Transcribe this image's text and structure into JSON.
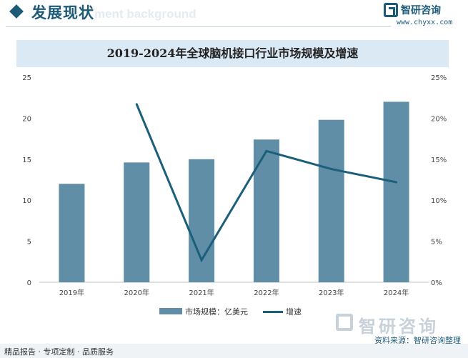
{
  "header": {
    "title": "发展现状",
    "watermark": "ment background"
  },
  "brand": {
    "name": "智研咨询",
    "url": "www.chyxx.com"
  },
  "chart_data": {
    "type": "bar",
    "title": "2019-2024年全球脑机接口行业市场规模及增速",
    "categories": [
      "2019年",
      "2020年",
      "2021年",
      "2022年",
      "2023年",
      "2024年"
    ],
    "series": [
      {
        "name": "市场规模：亿美元",
        "type": "bar",
        "axis": "left",
        "color": "#5f8ea6",
        "values": [
          12.0,
          14.6,
          15.0,
          17.4,
          19.8,
          22.0
        ]
      },
      {
        "name": "增速",
        "type": "line",
        "axis": "right",
        "color": "#1b5f7b",
        "values": [
          null,
          21.7,
          2.7,
          16.0,
          13.8,
          12.2
        ]
      }
    ],
    "y_left": {
      "min": 0,
      "max": 25,
      "ticks": [
        "0",
        "5",
        "10",
        "15",
        "20",
        "25"
      ]
    },
    "y_right": {
      "min": 0,
      "max": 25,
      "ticks": [
        "0%",
        "5%",
        "10%",
        "15%",
        "20%",
        "25%"
      ]
    },
    "grid": false,
    "legend_position": "bottom"
  },
  "footer": {
    "logo_text": "智研咨询",
    "source": "资料来源：智研咨询整理",
    "bar_text": "精品报告 · 专项定制 · 品质服务"
  }
}
